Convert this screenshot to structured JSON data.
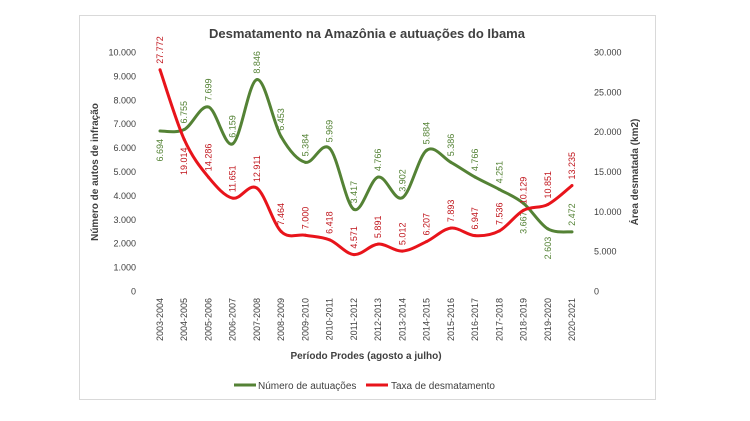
{
  "chart_data": {
    "type": "line",
    "title": "Desmatamento na Amazônia e autuações do Ibama",
    "xlabel": "Período Prodes (agosto a julho)",
    "ylabel_left": "Número de autos de infração",
    "ylabel_right": "Área desmatada (km2)",
    "ylim_left": [
      0,
      10000
    ],
    "ylim_right": [
      0,
      30000
    ],
    "yticks_left": [
      "0",
      "1.000",
      "2.000",
      "3.000",
      "4.000",
      "5.000",
      "6.000",
      "7.000",
      "8.000",
      "9.000",
      "10.000"
    ],
    "yticks_right": [
      "0",
      "5.000",
      "10.000",
      "15.000",
      "20.000",
      "25.000",
      "30.000"
    ],
    "grid": false,
    "legend": "bottom",
    "categories": [
      "2003-2004",
      "2004-2005",
      "2005-2006",
      "2006-2007",
      "2007-2008",
      "2008-2009",
      "2009-2010",
      "2010-2011",
      "2011-2012",
      "2012-2013",
      "2013-2014",
      "2014-2015",
      "2015-2016",
      "2016-2017",
      "2017-2018",
      "2018-2019",
      "2019-2020",
      "2020-2021"
    ],
    "series": [
      {
        "name": "Número de autuações",
        "axis": "left",
        "color": "#548235",
        "values": [
          6694,
          6755,
          7699,
          6159,
          8846,
          6453,
          5384,
          5969,
          3417,
          4766,
          3902,
          5884,
          5386,
          4766,
          4251,
          3667,
          2603,
          2472
        ],
        "labels": [
          "6.694",
          "6.755",
          "7.699",
          "6.159",
          "8.846",
          "6.453",
          "5.384",
          "5.969",
          "3.417",
          "4.766",
          "3.902",
          "5.884",
          "5.386",
          "4.766",
          "4.251",
          "3.667",
          "2.603",
          "2.472"
        ]
      },
      {
        "name": "Taxa de desmatamento",
        "axis": "right",
        "color": "#e8141b",
        "values": [
          27772,
          19014,
          14286,
          11651,
          12911,
          7464,
          7000,
          6418,
          4571,
          5891,
          5012,
          6207,
          7893,
          6947,
          7536,
          10129,
          10851,
          13235
        ],
        "labels": [
          "27.772",
          "19.014",
          "14.286",
          "11.651",
          "12.911",
          "7.464",
          "7.000",
          "6.418",
          "4.571",
          "5.891",
          "5.012",
          "6.207",
          "7.893",
          "6.947",
          "7.536",
          "10.129",
          "10.851",
          "13.235"
        ]
      }
    ]
  }
}
